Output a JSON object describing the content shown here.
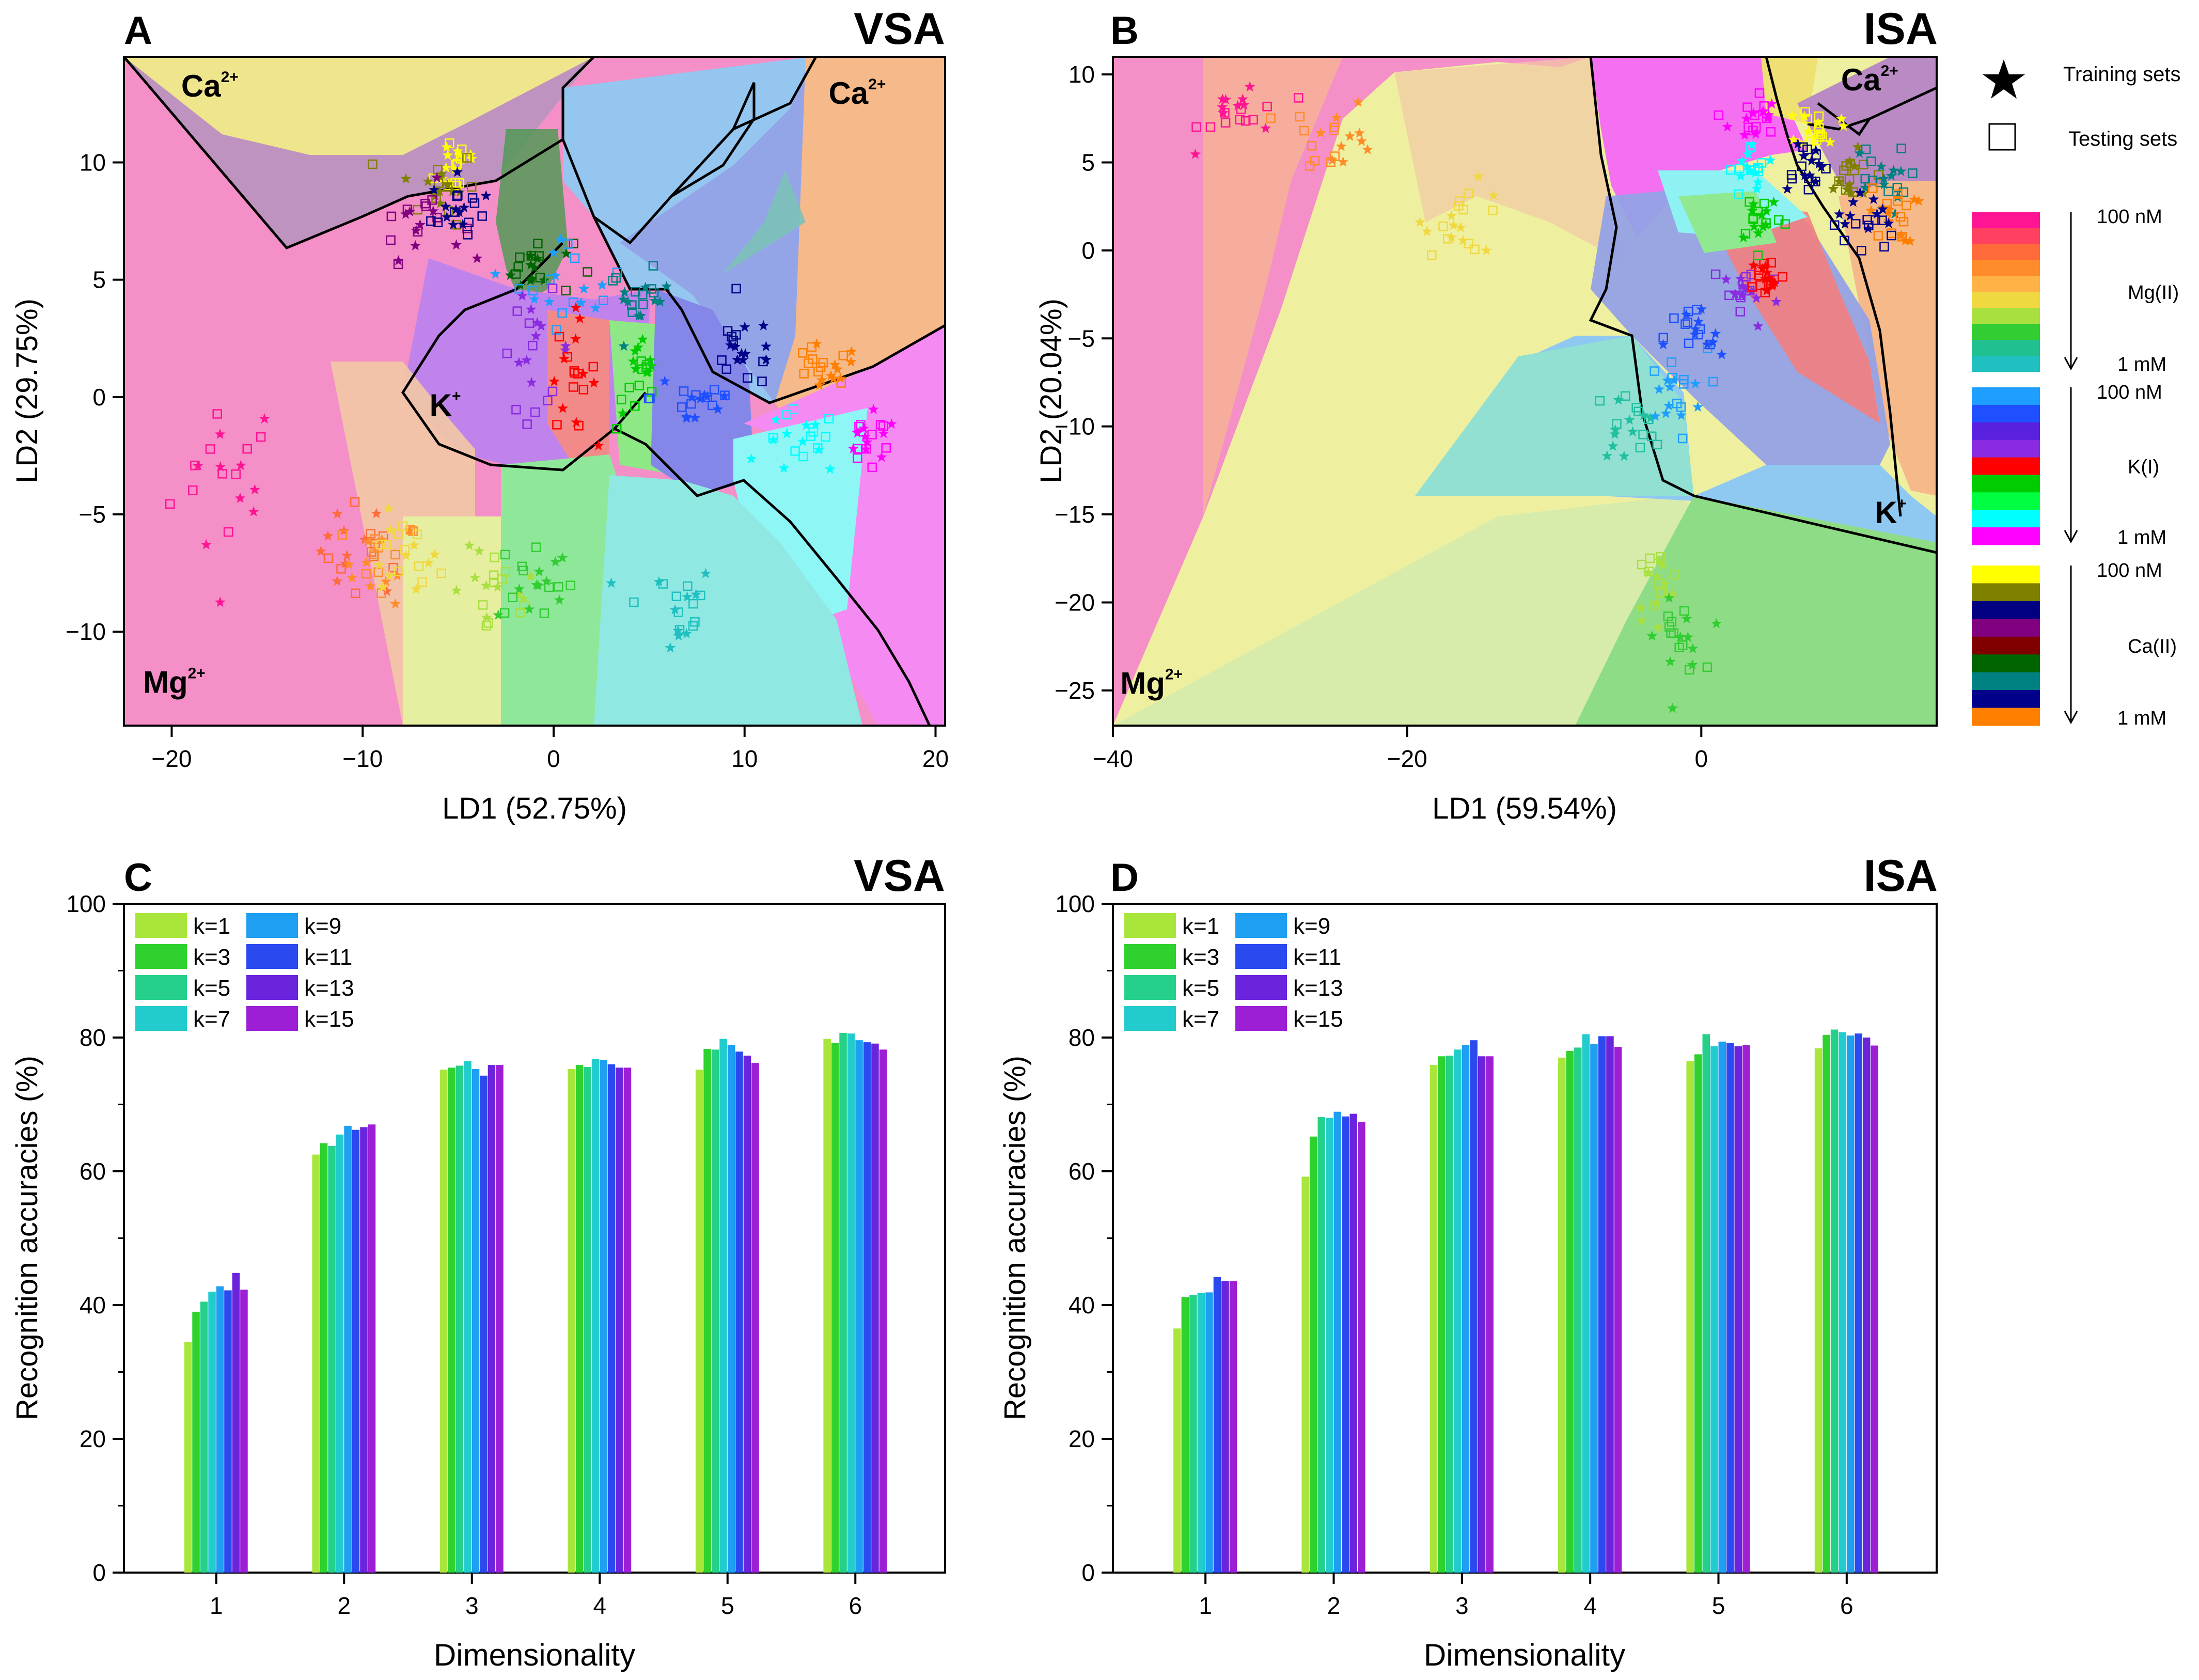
{
  "panels": {
    "A": {
      "letter": "A",
      "label": "VSA"
    },
    "B": {
      "letter": "B",
      "label": "ISA"
    },
    "C": {
      "letter": "C",
      "label": "VSA"
    },
    "D": {
      "letter": "D",
      "label": "ISA"
    }
  },
  "legend": {
    "training": "Training sets",
    "testing": "Testing sets",
    "groups": [
      {
        "top": "100 nM",
        "name": "Mg(II)",
        "bottom": "1 mM",
        "colors": [
          "#ff1493",
          "#ff4060",
          "#ff6a3a",
          "#ff8c2a",
          "#ffb347",
          "#f0d840",
          "#a8e040",
          "#32cd32",
          "#20c090",
          "#20c0c0"
        ]
      },
      {
        "top": "100 nM",
        "name": "K(I)",
        "bottom": "1 mM",
        "colors": [
          "#1e9fff",
          "#1e50ff",
          "#5a20e0",
          "#8a2be2",
          "#ff0000",
          "#00cc00",
          "#00ff40",
          "#00ffff",
          "#ff00ff"
        ]
      },
      {
        "top": "100 nM",
        "name": "Ca(II)",
        "bottom": "1 mM",
        "colors": [
          "#ffff00",
          "#808000",
          "#000080",
          "#800080",
          "#800000",
          "#006400",
          "#008080",
          "#00008b",
          "#ff7f00"
        ]
      }
    ]
  },
  "region_labels": {
    "A": [
      {
        "text": "Ca",
        "sup": "2+",
        "x": -19.5,
        "y": 12.8
      },
      {
        "text": "Ca",
        "sup": "2+",
        "x": 14.4,
        "y": 12.5
      },
      {
        "text": "K",
        "sup": "+",
        "x": -6.5,
        "y": -0.8
      },
      {
        "text": "Mg",
        "sup": "2+",
        "x": -21.5,
        "y": -12.6
      }
    ],
    "B": [
      {
        "text": "Ca",
        "sup": "2+",
        "x": 9.5,
        "y": 9.1
      },
      {
        "text": "K",
        "sup": "+",
        "x": 11.8,
        "y": -15.5
      },
      {
        "text": "Mg",
        "sup": "2+",
        "x": -39.5,
        "y": -25.2
      }
    ]
  },
  "chart_data": [
    {
      "panel": "A",
      "type": "scatter",
      "title": "VSA",
      "xlabel": "LD1 (52.75%)",
      "ylabel": "LD2 (29.75%)",
      "xlim": [
        -22.5,
        20.5
      ],
      "ylim": [
        -14,
        14.5
      ],
      "xticks": [
        -20,
        -10,
        0,
        10,
        20
      ],
      "yticks": [
        -10,
        -5,
        0,
        5,
        10
      ],
      "xticklabels": [
        "−20",
        "−10",
        "0",
        "10",
        "20"
      ],
      "yticklabels": [
        "−10",
        "−5",
        "0",
        "5",
        "10"
      ],
      "clusters": [
        {
          "color": "#ff1493",
          "x": -17,
          "y": -3.5,
          "sx": 1.5,
          "sy": 2.0
        },
        {
          "color": "#ff6a3a",
          "x": -10,
          "y": -6.5,
          "sx": 1.1,
          "sy": 1.0
        },
        {
          "color": "#ff8c2a",
          "x": -9,
          "y": -7,
          "sx": 1.0,
          "sy": 0.9
        },
        {
          "color": "#f0d840",
          "x": -8,
          "y": -7,
          "sx": 1.0,
          "sy": 0.9
        },
        {
          "color": "#a8e040",
          "x": -3,
          "y": -8.5,
          "sx": 1.2,
          "sy": 1.0
        },
        {
          "color": "#32cd32",
          "x": -1,
          "y": -7.8,
          "sx": 1.0,
          "sy": 1.0
        },
        {
          "color": "#20c0c0",
          "x": 6,
          "y": -9,
          "sx": 1.3,
          "sy": 1.0
        },
        {
          "color": "#ffff00",
          "x": -5,
          "y": 10,
          "sx": 0.6,
          "sy": 0.8
        },
        {
          "color": "#808000",
          "x": -6,
          "y": 9,
          "sx": 1.0,
          "sy": 0.8
        },
        {
          "color": "#800080",
          "x": -7,
          "y": 7.5,
          "sx": 1.1,
          "sy": 0.8
        },
        {
          "color": "#000080",
          "x": -5,
          "y": 8,
          "sx": 0.7,
          "sy": 0.7
        },
        {
          "color": "#006400",
          "x": -1,
          "y": 5.5,
          "sx": 1.0,
          "sy": 0.6
        },
        {
          "color": "#1e9fff",
          "x": 1,
          "y": 5,
          "sx": 1.4,
          "sy": 1.0
        },
        {
          "color": "#008080",
          "x": 4.5,
          "y": 4.2,
          "sx": 0.8,
          "sy": 0.6
        },
        {
          "color": "#8a2be2",
          "x": -1,
          "y": 2,
          "sx": 1.0,
          "sy": 1.2
        },
        {
          "color": "#ff0000",
          "x": 1,
          "y": 1,
          "sx": 0.6,
          "sy": 1.2
        },
        {
          "color": "#00cc00",
          "x": 4.5,
          "y": 0.5,
          "sx": 0.6,
          "sy": 1.0
        },
        {
          "color": "#1e50ff",
          "x": 7.5,
          "y": 0,
          "sx": 1.2,
          "sy": 0.8
        },
        {
          "color": "#00008b",
          "x": 10,
          "y": 2,
          "sx": 1.0,
          "sy": 0.8
        },
        {
          "color": "#ff7f00",
          "x": 14,
          "y": 1,
          "sx": 1.0,
          "sy": 0.6
        },
        {
          "color": "#00ffff",
          "x": 13,
          "y": -2,
          "sx": 1.0,
          "sy": 0.7
        },
        {
          "color": "#ff00ff",
          "x": 16.5,
          "y": -2,
          "sx": 0.8,
          "sy": 0.6
        }
      ]
    },
    {
      "panel": "B",
      "type": "scatter",
      "title": "ISA",
      "xlabel": "LD1 (59.54%)",
      "ylabel": "LD2 (20.04%)",
      "xlim": [
        -40,
        16
      ],
      "ylim": [
        -27,
        11
      ],
      "xticks": [
        -40,
        -20,
        0
      ],
      "yticks": [
        -25,
        -20,
        -15,
        -10,
        -5,
        0,
        5,
        10
      ],
      "xticklabels": [
        "−40",
        "−20",
        "0"
      ],
      "yticklabels": [
        "−25",
        "−20",
        "−15",
        "−10",
        "−5",
        "0",
        "5",
        "10"
      ],
      "clusters": [
        {
          "color": "#ff1493",
          "x": -31,
          "y": 8,
          "sx": 1.5,
          "sy": 1.0
        },
        {
          "color": "#ff8c2a",
          "x": -25,
          "y": 6.5,
          "sx": 1.5,
          "sy": 1.0
        },
        {
          "color": "#f0d840",
          "x": -16,
          "y": 1.8,
          "sx": 1.4,
          "sy": 1.0
        },
        {
          "color": "#a8e040",
          "x": -3,
          "y": -19,
          "sx": 0.8,
          "sy": 1.0
        },
        {
          "color": "#32cd32",
          "x": -1.5,
          "y": -22,
          "sx": 0.8,
          "sy": 1.0
        },
        {
          "color": "#20c0a0",
          "x": -5,
          "y": -10,
          "sx": 1.2,
          "sy": 1.0
        },
        {
          "color": "#1e9fff",
          "x": -2,
          "y": -8,
          "sx": 1.2,
          "sy": 1.2
        },
        {
          "color": "#1e50ff",
          "x": -0.5,
          "y": -5,
          "sx": 1.0,
          "sy": 1.0
        },
        {
          "color": "#8a2be2",
          "x": 3,
          "y": -2.5,
          "sx": 1.2,
          "sy": 1.0
        },
        {
          "color": "#ff0000",
          "x": 4.5,
          "y": -1.5,
          "sx": 0.6,
          "sy": 0.6
        },
        {
          "color": "#00cc00",
          "x": 4,
          "y": 2,
          "sx": 0.8,
          "sy": 0.8
        },
        {
          "color": "#00ffff",
          "x": 3.5,
          "y": 4.5,
          "sx": 0.8,
          "sy": 0.8
        },
        {
          "color": "#ff00ff",
          "x": 3.5,
          "y": 7.5,
          "sx": 0.8,
          "sy": 0.8
        },
        {
          "color": "#ffff00",
          "x": 8,
          "y": 7,
          "sx": 0.7,
          "sy": 0.6
        },
        {
          "color": "#000080",
          "x": 7,
          "y": 5,
          "sx": 0.8,
          "sy": 0.8
        },
        {
          "color": "#808000",
          "x": 10,
          "y": 4,
          "sx": 1.0,
          "sy": 0.8
        },
        {
          "color": "#008080",
          "x": 12,
          "y": 4,
          "sx": 1.0,
          "sy": 1.0
        },
        {
          "color": "#ff7f00",
          "x": 13,
          "y": 2,
          "sx": 0.8,
          "sy": 0.8
        },
        {
          "color": "#00008b",
          "x": 11,
          "y": 1.5,
          "sx": 1.0,
          "sy": 1.0
        }
      ]
    },
    {
      "panel": "C",
      "type": "bar",
      "title": "VSA",
      "xlabel": "Dimensionality",
      "ylabel": "Recognition accuracies (%)",
      "ylim": [
        0,
        100
      ],
      "yticks": [
        0,
        20,
        40,
        60,
        80,
        100
      ],
      "categories": [
        "1",
        "2",
        "3",
        "4",
        "5",
        "6"
      ],
      "series": [
        {
          "name": "k=1",
          "color": "#a8e63c",
          "values": [
            34.5,
            62.5,
            75.2,
            75.3,
            75.2,
            79.8
          ]
        },
        {
          "name": "k=3",
          "color": "#2ed12e",
          "values": [
            39,
            64.2,
            75.5,
            75.9,
            78.3,
            79.2
          ]
        },
        {
          "name": "k=5",
          "color": "#25d18a",
          "values": [
            40.5,
            63.8,
            75.8,
            75.6,
            78.2,
            80.7
          ]
        },
        {
          "name": "k=7",
          "color": "#22cccc",
          "values": [
            42,
            65.5,
            76.5,
            76.8,
            79.8,
            80.6
          ]
        },
        {
          "name": "k=9",
          "color": "#1e9ff2",
          "values": [
            42.8,
            66.8,
            75.3,
            76.6,
            78.9,
            79.6
          ]
        },
        {
          "name": "k=11",
          "color": "#2a4af0",
          "values": [
            42.2,
            66.2,
            74.3,
            76.0,
            77.9,
            79.3
          ]
        },
        {
          "name": "k=13",
          "color": "#6a24dc",
          "values": [
            44.8,
            66.6,
            75.9,
            75.5,
            77.3,
            79.1
          ]
        },
        {
          "name": "k=15",
          "color": "#9c1fd6",
          "values": [
            42.3,
            67.0,
            75.9,
            75.5,
            76.2,
            78.2
          ]
        }
      ]
    },
    {
      "panel": "D",
      "type": "bar",
      "title": "ISA",
      "xlabel": "Dimensionality",
      "ylabel": "Recognition accuracies (%)",
      "ylim": [
        0,
        100
      ],
      "yticks": [
        0,
        20,
        40,
        60,
        80,
        100
      ],
      "categories": [
        "1",
        "2",
        "3",
        "4",
        "5",
        "6"
      ],
      "series": [
        {
          "name": "k=1",
          "color": "#a8e63c",
          "values": [
            36.5,
            59.2,
            75.9,
            77.0,
            76.5,
            78.4
          ]
        },
        {
          "name": "k=3",
          "color": "#2ed12e",
          "values": [
            41.2,
            65.2,
            77.2,
            78.0,
            77.5,
            80.4
          ]
        },
        {
          "name": "k=5",
          "color": "#25d18a",
          "values": [
            41.5,
            68.1,
            77.3,
            78.5,
            80.5,
            81.2
          ]
        },
        {
          "name": "k=7",
          "color": "#22cccc",
          "values": [
            41.8,
            68.0,
            78.2,
            80.5,
            78.7,
            80.8
          ]
        },
        {
          "name": "k=9",
          "color": "#1e9ff2",
          "values": [
            41.9,
            68.9,
            78.9,
            79.0,
            79.4,
            80.3
          ]
        },
        {
          "name": "k=11",
          "color": "#2a4af0",
          "values": [
            44.2,
            68.2,
            79.6,
            80.2,
            79.2,
            80.6
          ]
        },
        {
          "name": "k=13",
          "color": "#6a24dc",
          "values": [
            43.6,
            68.6,
            77.2,
            80.2,
            78.7,
            80.0
          ]
        },
        {
          "name": "k=15",
          "color": "#9c1fd6",
          "values": [
            43.6,
            67.4,
            77.2,
            78.6,
            78.9,
            78.8
          ]
        }
      ]
    }
  ]
}
